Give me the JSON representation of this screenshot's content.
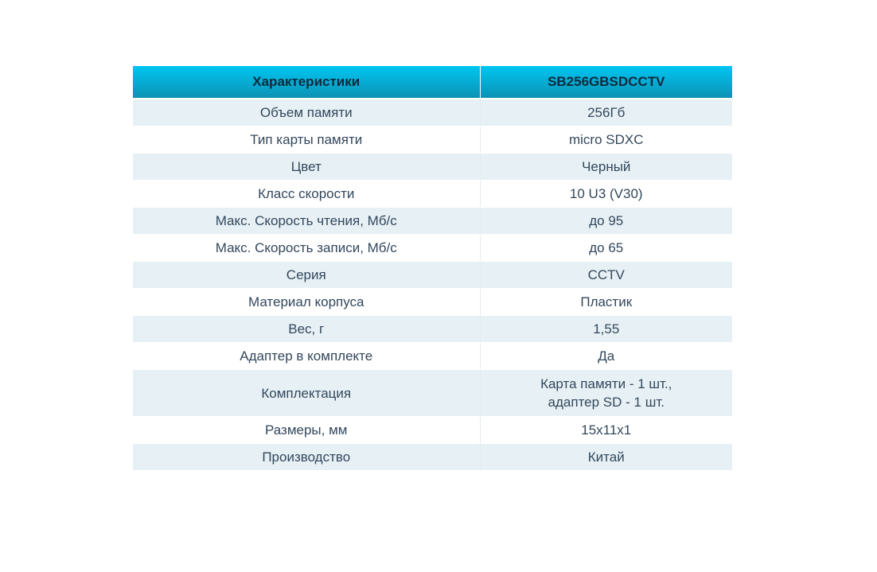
{
  "table": {
    "header": {
      "characteristics_label": "Характеристики",
      "model_label": "SB256GBSDCCTV"
    },
    "rows": [
      {
        "label": "Объем памяти",
        "value": "256Гб"
      },
      {
        "label": "Тип карты памяти",
        "value": "micro SDXC"
      },
      {
        "label": "Цвет",
        "value": "Черный"
      },
      {
        "label": "Класс скорости",
        "value": "10 U3 (V30)"
      },
      {
        "label": "Макс. Скорость чтения, Мб/с",
        "value": "до 95"
      },
      {
        "label": "Макс. Скорость записи, Мб/с",
        "value": "до 65"
      },
      {
        "label": "Серия",
        "value": "CCTV"
      },
      {
        "label": "Материал корпуса",
        "value": "Пластик"
      },
      {
        "label": "Вес, г",
        "value": "1,55"
      },
      {
        "label": "Адаптер в комплекте",
        "value": "Да"
      },
      {
        "label": "Комплектация",
        "value": "Карта памяти - 1 шт.,\nадаптер SD - 1 шт."
      },
      {
        "label": "Размеры, мм",
        "value": "15x11x1"
      },
      {
        "label": "Производство",
        "value": "Китай"
      }
    ],
    "colors": {
      "header_gradient_top": "#00c6f2",
      "header_gradient_bottom": "#0c92b4",
      "header_text": "#0e2a3c",
      "row_alt_background": "#e7f1f5",
      "row_background": "#ffffff",
      "body_text": "#33475c",
      "column_divider": "#e3ecef"
    }
  }
}
